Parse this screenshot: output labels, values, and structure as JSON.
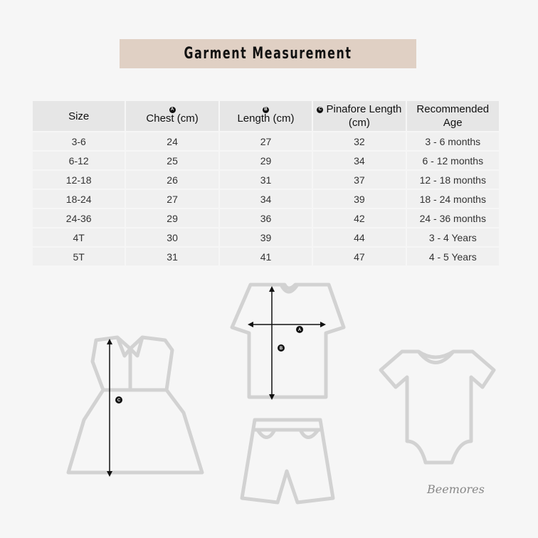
{
  "title": "Garment Measurement",
  "table": {
    "headers": {
      "size": "Size",
      "chest": "Chest (cm)",
      "length": "Length (cm)",
      "pinafore": "Pinafore Length (cm)",
      "age": "Recommended Age"
    },
    "markers": {
      "chest": "A",
      "length": "B",
      "pinafore": "C"
    },
    "rows": [
      [
        "3-6",
        "24",
        "27",
        "32",
        "3 - 6 months"
      ],
      [
        "6-12",
        "25",
        "29",
        "34",
        "6 - 12 months"
      ],
      [
        "12-18",
        "26",
        "31",
        "37",
        "12 - 18 months"
      ],
      [
        "18-24",
        "27",
        "34",
        "39",
        "18 - 24 months"
      ],
      [
        "24-36",
        "29",
        "36",
        "42",
        "24 - 36 months"
      ],
      [
        "4T",
        "30",
        "39",
        "44",
        "3 - 4 Years"
      ],
      [
        "5T",
        "31",
        "41",
        "47",
        "4 - 5 Years"
      ]
    ]
  },
  "colors": {
    "title_bg": "#e0d0c4",
    "outline": "#d2d2d2"
  },
  "signature": "Beemores"
}
